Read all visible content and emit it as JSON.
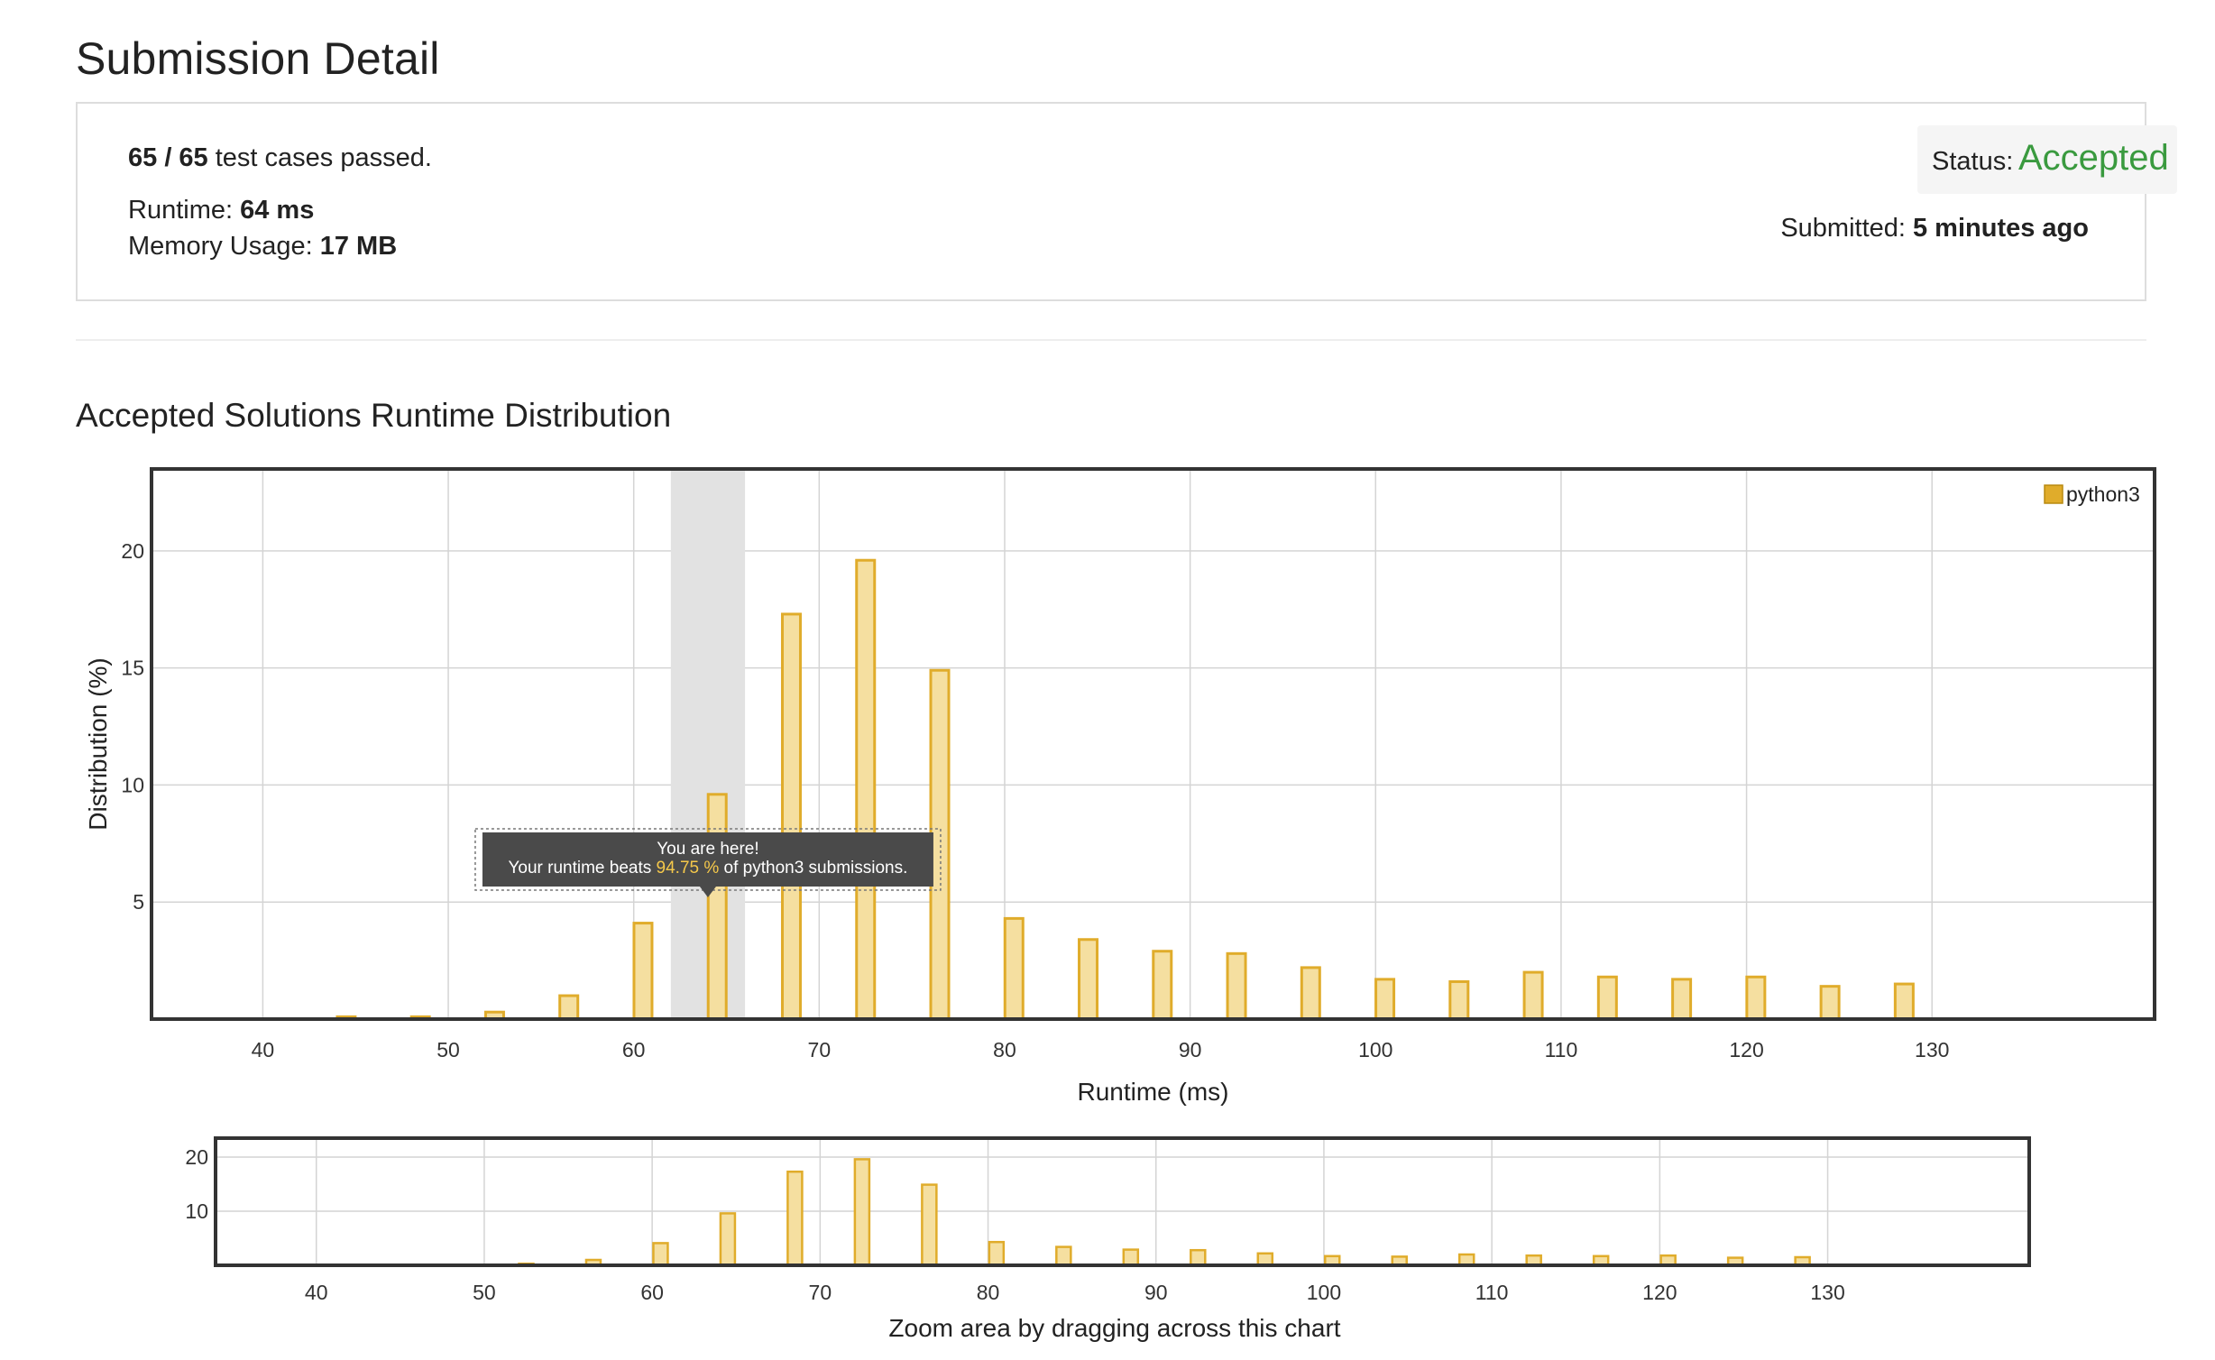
{
  "page": {
    "title": "Submission Detail"
  },
  "summary": {
    "passed": "65 / 65",
    "passed_suffix": " test cases passed.",
    "runtime_label": "Runtime: ",
    "runtime_value": "64 ms",
    "memory_label": "Memory Usage: ",
    "memory_value": "17 MB",
    "status_label": "Status: ",
    "status_value": "Accepted",
    "submitted_label": "Submitted: ",
    "submitted_value": "5 minutes ago"
  },
  "section": {
    "title": "Accepted Solutions Runtime Distribution"
  },
  "colors": {
    "accepted": "#3a9a3f",
    "bar_fill": "#f5dfa0",
    "bar_stroke": "#e0ac2b",
    "highlight_band": "#e2e2e2",
    "tooltip_bg": "#4a4a4a",
    "tooltip_value": "#f5c84a"
  },
  "tooltip": {
    "line1": "You are here!",
    "line2_prefix": "Your runtime beats ",
    "line2_value": "94.75 %",
    "line2_suffix": " of python3 submissions."
  },
  "chart_data": [
    {
      "type": "bar",
      "role": "main",
      "xlabel": "Runtime (ms)",
      "ylabel": "Distribution (%)",
      "xlim": [
        34,
        142
      ],
      "ylim": [
        0,
        23.5
      ],
      "xticks": [
        40,
        50,
        60,
        70,
        80,
        90,
        100,
        110,
        120,
        130
      ],
      "yticks": [
        5,
        10,
        15,
        20
      ],
      "grid": true,
      "legend": "top-right",
      "highlight_range": [
        62,
        66
      ],
      "series": [
        {
          "name": "python3",
          "x": [
            44.5,
            48.5,
            52.5,
            56.5,
            60.5,
            64.5,
            68.5,
            72.5,
            76.5,
            80.5,
            84.5,
            88.5,
            92.5,
            96.5,
            100.5,
            104.5,
            108.5,
            112.5,
            116.5,
            120.5,
            124.5,
            128.5
          ],
          "values": [
            0.1,
            0.1,
            0.3,
            1.0,
            4.1,
            9.6,
            17.3,
            19.6,
            14.9,
            4.3,
            3.4,
            2.9,
            2.8,
            2.2,
            1.7,
            1.6,
            2.0,
            1.8,
            1.7,
            1.8,
            1.4,
            1.5
          ]
        }
      ]
    },
    {
      "type": "bar",
      "role": "navigator",
      "xlabel": "Zoom area by dragging across this chart",
      "xlim": [
        34,
        142
      ],
      "ylim": [
        0,
        23.5
      ],
      "xticks": [
        40,
        50,
        60,
        70,
        80,
        90,
        100,
        110,
        120,
        130
      ],
      "yticks": [
        10,
        20
      ],
      "grid": true
    }
  ]
}
